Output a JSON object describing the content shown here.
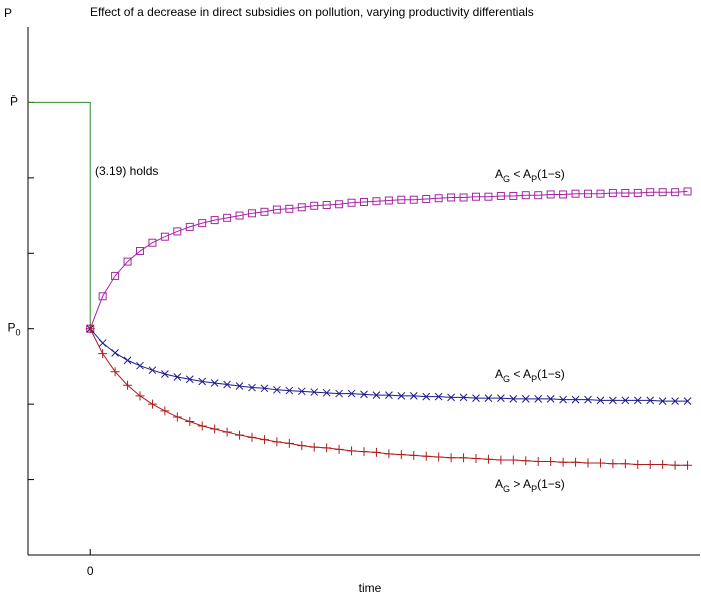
{
  "chart_data": {
    "type": "line",
    "title": "Effect of a decrease in direct subsidies on pollution, varying productivity differentials",
    "y_label": "P",
    "x_label": "time",
    "xlim": [
      -5,
      49
    ],
    "ylim": [
      0,
      7
    ],
    "xticks": [
      0
    ],
    "yticks": [
      {
        "value": 1,
        "label": null
      },
      {
        "value": 2,
        "label": null
      },
      {
        "value": 3,
        "label": "P0"
      },
      {
        "value": 4,
        "label": null
      },
      {
        "value": 5,
        "label": null
      },
      {
        "value": 6,
        "label": "P̄"
      }
    ],
    "series": [
      {
        "name": "(3.19) holds",
        "color": "#2e8b2e",
        "marker": null,
        "x": [
          -5,
          0,
          0
        ],
        "values": [
          6,
          6,
          3
        ]
      },
      {
        "name": "AG < AP(1−s)",
        "color": "#a626a4",
        "marker": "square",
        "x": [
          0,
          1,
          2,
          3,
          4,
          5,
          6,
          7,
          8,
          9,
          10,
          11,
          12,
          13,
          14,
          15,
          16,
          17,
          18,
          19,
          20,
          21,
          22,
          23,
          24,
          25,
          26,
          27,
          28,
          29,
          30,
          31,
          32,
          33,
          34,
          35,
          36,
          37,
          38,
          39,
          40,
          41,
          42,
          43,
          44,
          45,
          46,
          47,
          48
        ],
        "values": [
          3.0,
          3.43,
          3.7,
          3.89,
          4.03,
          4.14,
          4.22,
          4.29,
          4.35,
          4.4,
          4.44,
          4.47,
          4.5,
          4.53,
          4.55,
          4.58,
          4.59,
          4.61,
          4.63,
          4.64,
          4.65,
          4.67,
          4.68,
          4.69,
          4.7,
          4.71,
          4.71,
          4.72,
          4.73,
          4.74,
          4.74,
          4.75,
          4.75,
          4.76,
          4.76,
          4.77,
          4.77,
          4.78,
          4.78,
          4.79,
          4.79,
          4.79,
          4.8,
          4.8,
          4.8,
          4.81,
          4.81,
          4.81,
          4.82
        ]
      },
      {
        "name": "AG < AP(1−s)",
        "color": "#1c1c8e",
        "marker": "x",
        "x": [
          0,
          1,
          2,
          3,
          4,
          5,
          6,
          7,
          8,
          9,
          10,
          11,
          12,
          13,
          14,
          15,
          16,
          17,
          18,
          19,
          20,
          21,
          22,
          23,
          24,
          25,
          26,
          27,
          28,
          29,
          30,
          31,
          32,
          33,
          34,
          35,
          36,
          37,
          38,
          39,
          40,
          41,
          42,
          43,
          44,
          45,
          46,
          47,
          48
        ],
        "values": [
          3.0,
          2.81,
          2.68,
          2.58,
          2.51,
          2.45,
          2.4,
          2.36,
          2.33,
          2.3,
          2.28,
          2.26,
          2.24,
          2.22,
          2.21,
          2.19,
          2.18,
          2.17,
          2.16,
          2.15,
          2.14,
          2.14,
          2.13,
          2.12,
          2.12,
          2.11,
          2.11,
          2.1,
          2.1,
          2.09,
          2.09,
          2.08,
          2.08,
          2.08,
          2.07,
          2.07,
          2.07,
          2.07,
          2.06,
          2.06,
          2.06,
          2.05,
          2.05,
          2.05,
          2.05,
          2.05,
          2.04,
          2.04,
          2.04
        ]
      },
      {
        "name": "AG > AP(1−s)",
        "color": "#b01c1c",
        "marker": "plus",
        "x": [
          0,
          1,
          2,
          3,
          4,
          5,
          6,
          7,
          8,
          9,
          10,
          11,
          12,
          13,
          14,
          15,
          16,
          17,
          18,
          19,
          20,
          21,
          22,
          23,
          24,
          25,
          26,
          27,
          28,
          29,
          30,
          31,
          32,
          33,
          34,
          35,
          36,
          37,
          38,
          39,
          40,
          41,
          42,
          43,
          44,
          45,
          46,
          47,
          48
        ],
        "values": [
          3.0,
          2.67,
          2.43,
          2.25,
          2.11,
          2.0,
          1.91,
          1.83,
          1.77,
          1.71,
          1.67,
          1.63,
          1.59,
          1.56,
          1.53,
          1.5,
          1.48,
          1.45,
          1.43,
          1.42,
          1.4,
          1.38,
          1.37,
          1.36,
          1.34,
          1.33,
          1.32,
          1.31,
          1.3,
          1.29,
          1.29,
          1.28,
          1.27,
          1.26,
          1.26,
          1.25,
          1.24,
          1.24,
          1.23,
          1.23,
          1.22,
          1.22,
          1.21,
          1.21,
          1.2,
          1.2,
          1.2,
          1.19,
          1.19
        ]
      }
    ]
  }
}
